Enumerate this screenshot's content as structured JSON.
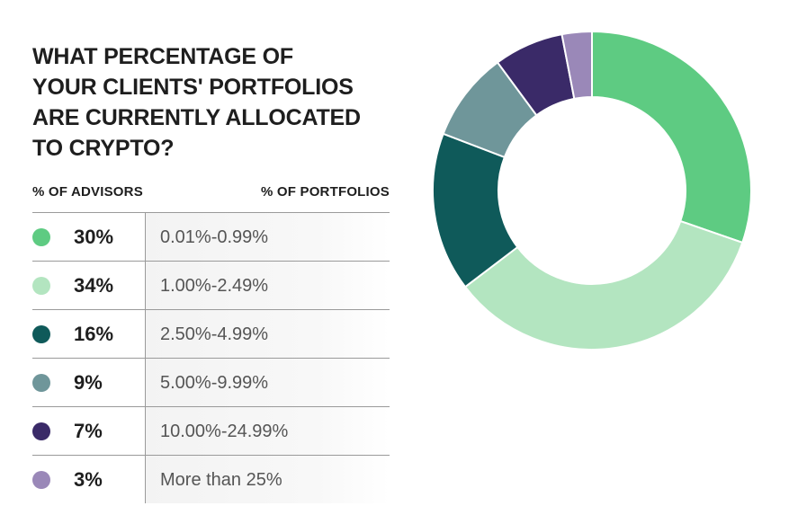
{
  "title_lines": [
    "WHAT PERCENTAGE OF",
    "YOUR CLIENTS' PORTFOLIOS",
    "ARE CURRENTLY ALLOCATED",
    "TO CRYPTO?"
  ],
  "columns": {
    "left": "% OF ADVISORS",
    "right": "% OF PORTFOLIOS"
  },
  "chart_data": {
    "type": "pie",
    "variant": "donut",
    "categories": [
      "0.01%-0.99%",
      "1.00%-2.49%",
      "2.50%-4.99%",
      "5.00%-9.99%",
      "10.00%-24.99%",
      "More than 25%"
    ],
    "values": [
      30,
      34,
      16,
      9,
      7,
      3
    ],
    "value_labels": [
      "30%",
      "34%",
      "16%",
      "9%",
      "7%",
      "3%"
    ],
    "colors": [
      "#5ecb82",
      "#b3e5c0",
      "#0f5a5a",
      "#6f969a",
      "#3a2a68",
      "#9a88b8"
    ],
    "legend_placement": "left"
  }
}
